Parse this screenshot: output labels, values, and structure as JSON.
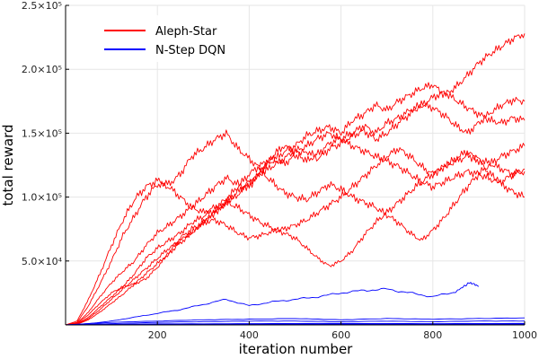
{
  "chart_data": {
    "type": "line",
    "xlabel": "iteration number",
    "ylabel": "total reward",
    "xlim": [
      0,
      1000
    ],
    "ylim": [
      0,
      250000
    ],
    "grid": true,
    "legend_position": "top-left",
    "x_ticks": [
      {
        "value": 200,
        "label": "200"
      },
      {
        "value": 400,
        "label": "400"
      },
      {
        "value": 600,
        "label": "600"
      },
      {
        "value": 800,
        "label": "800"
      },
      {
        "value": 1000,
        "label": "1000"
      }
    ],
    "y_ticks": [
      {
        "value": 50000,
        "label": "5.0×10⁴"
      },
      {
        "value": 100000,
        "label": "1.0×10⁵"
      },
      {
        "value": 150000,
        "label": "1.5×10⁵"
      },
      {
        "value": 200000,
        "label": "2.0×10⁵"
      },
      {
        "value": 250000,
        "label": "2.5×10⁵"
      }
    ],
    "legend": [
      {
        "label": "Aleph-Star",
        "color": "#ff0000"
      },
      {
        "label": "N-Step DQN",
        "color": "#0000ff"
      }
    ],
    "series": [
      {
        "group": "Aleph-Star",
        "color": "#ff0000",
        "x": [
          0,
          25,
          50,
          75,
          100,
          125,
          150,
          175,
          200,
          225,
          250,
          275,
          300,
          325,
          350,
          375,
          400,
          425,
          450,
          475,
          500,
          525,
          550,
          575,
          600,
          625,
          650,
          675,
          700,
          725,
          750,
          775,
          800,
          825,
          850,
          875,
          900,
          925,
          950,
          975,
          1000
        ],
        "y": [
          0,
          3000,
          20000,
          40000,
          62000,
          82000,
          98000,
          108000,
          113000,
          110000,
          118000,
          132000,
          138000,
          145000,
          150000,
          138000,
          130000,
          122000,
          128000,
          135000,
          140000,
          148000,
          152000,
          155000,
          150000,
          160000,
          165000,
          172000,
          168000,
          175000,
          180000,
          185000,
          188000,
          180000,
          186000,
          195000,
          205000,
          212000,
          218000,
          224000,
          228000
        ]
      },
      {
        "group": "Aleph-Star",
        "color": "#ff0000",
        "x": [
          0,
          25,
          50,
          75,
          100,
          125,
          150,
          175,
          200,
          225,
          250,
          275,
          300,
          325,
          350,
          375,
          400,
          425,
          450,
          475,
          500,
          525,
          550,
          575,
          600,
          625,
          650,
          675,
          700,
          725,
          750,
          775,
          800,
          825,
          850,
          875,
          900,
          925,
          950,
          975,
          1000
        ],
        "y": [
          0,
          2000,
          15000,
          32000,
          50000,
          70000,
          85000,
          100000,
          110000,
          108000,
          100000,
          92000,
          88000,
          92000,
          98000,
          108000,
          118000,
          125000,
          130000,
          126000,
          132000,
          136000,
          130000,
          138000,
          142000,
          148000,
          152000,
          145000,
          150000,
          158000,
          165000,
          172000,
          178000,
          182000,
          176000,
          170000,
          165000,
          160000,
          158000,
          162000,
          160000
        ]
      },
      {
        "group": "Aleph-Star",
        "color": "#ff0000",
        "x": [
          0,
          25,
          50,
          75,
          100,
          125,
          150,
          175,
          200,
          225,
          250,
          275,
          300,
          325,
          350,
          375,
          400,
          425,
          450,
          475,
          500,
          525,
          550,
          575,
          600,
          625,
          650,
          675,
          700,
          725,
          750,
          775,
          800,
          825,
          850,
          875,
          900,
          925,
          950,
          975,
          1000
        ],
        "y": [
          0,
          1500,
          10000,
          22000,
          33000,
          42000,
          50000,
          62000,
          72000,
          78000,
          85000,
          92000,
          100000,
          108000,
          115000,
          110000,
          108000,
          120000,
          132000,
          140000,
          136000,
          128000,
          134000,
          142000,
          146000,
          150000,
          156000,
          150000,
          158000,
          162000,
          168000,
          172000,
          170000,
          164000,
          156000,
          150000,
          158000,
          166000,
          172000,
          176000,
          175000
        ]
      },
      {
        "group": "Aleph-Star",
        "color": "#ff0000",
        "x": [
          0,
          25,
          50,
          75,
          100,
          125,
          150,
          175,
          200,
          225,
          250,
          275,
          300,
          325,
          350,
          375,
          400,
          425,
          450,
          475,
          500,
          525,
          550,
          575,
          600,
          625,
          650,
          675,
          700,
          725,
          750,
          775,
          800,
          825,
          850,
          875,
          900,
          925,
          950,
          975,
          1000
        ],
        "y": [
          0,
          1000,
          8000,
          17000,
          25000,
          30000,
          32000,
          36000,
          45000,
          56000,
          68000,
          75000,
          80000,
          82000,
          78000,
          72000,
          68000,
          70000,
          73000,
          75000,
          78000,
          82000,
          88000,
          94000,
          100000,
          108000,
          116000,
          124000,
          132000,
          138000,
          132000,
          124000,
          118000,
          124000,
          130000,
          136000,
          128000,
          118000,
          110000,
          104000,
          100000
        ]
      },
      {
        "group": "Aleph-Star",
        "color": "#ff0000",
        "x": [
          0,
          25,
          50,
          75,
          100,
          125,
          150,
          175,
          200,
          225,
          250,
          275,
          300,
          325,
          350,
          375,
          400,
          425,
          450,
          475,
          500,
          525,
          550,
          575,
          600,
          625,
          650,
          675,
          700,
          725,
          750,
          775,
          800,
          825,
          850,
          875,
          900,
          925,
          950,
          975,
          1000
        ],
        "y": [
          0,
          800,
          6000,
          14000,
          22000,
          30000,
          40000,
          52000,
          60000,
          66000,
          72000,
          80000,
          85000,
          90000,
          96000,
          92000,
          86000,
          80000,
          76000,
          72000,
          68000,
          60000,
          52000,
          46000,
          50000,
          58000,
          70000,
          80000,
          88000,
          96000,
          104000,
          112000,
          118000,
          124000,
          128000,
          132000,
          130000,
          126000,
          122000,
          118000,
          120000
        ]
      },
      {
        "group": "Aleph-Star",
        "color": "#ff0000",
        "x": [
          0,
          25,
          50,
          75,
          100,
          125,
          150,
          175,
          200,
          225,
          250,
          275,
          300,
          325,
          350,
          375,
          400,
          425,
          450,
          475,
          500,
          525,
          550,
          575,
          600,
          625,
          650,
          675,
          700,
          725,
          750,
          775,
          800,
          825,
          850,
          875,
          900,
          925,
          950,
          975,
          1000
        ],
        "y": [
          0,
          600,
          5000,
          12000,
          20000,
          28000,
          36000,
          44000,
          52000,
          60000,
          66000,
          72000,
          80000,
          88000,
          95000,
          102000,
          110000,
          120000,
          112000,
          104000,
          100000,
          98000,
          104000,
          110000,
          106000,
          100000,
          96000,
          92000,
          86000,
          80000,
          72000,
          66000,
          74000,
          84000,
          96000,
          108000,
          118000,
          126000,
          132000,
          136000,
          140000
        ]
      },
      {
        "group": "Aleph-Star",
        "color": "#ff0000",
        "x": [
          0,
          25,
          50,
          75,
          100,
          125,
          150,
          175,
          200,
          225,
          250,
          275,
          300,
          325,
          350,
          375,
          400,
          425,
          450,
          475,
          500,
          525,
          550,
          575,
          600,
          625,
          650,
          675,
          700,
          725,
          750,
          775,
          800,
          825,
          850,
          875,
          900,
          925,
          950,
          975,
          1000
        ],
        "y": [
          0,
          500,
          4000,
          10000,
          17000,
          24000,
          32000,
          40000,
          48000,
          56000,
          64000,
          72000,
          80000,
          88000,
          96000,
          104000,
          112000,
          118000,
          124000,
          130000,
          136000,
          140000,
          146000,
          150000,
          145000,
          140000,
          136000,
          132000,
          128000,
          124000,
          118000,
          112000,
          108000,
          112000,
          116000,
          120000,
          118000,
          114000,
          112000,
          118000,
          122000
        ]
      },
      {
        "group": "N-Step DQN",
        "color": "#0000ff",
        "x": [
          0,
          50,
          100,
          150,
          200,
          250,
          300,
          350,
          400,
          450,
          500,
          550,
          600,
          650,
          700,
          750,
          800,
          850,
          880,
          900
        ],
        "y": [
          0,
          1000,
          3000,
          6000,
          9000,
          12000,
          16000,
          20000,
          15000,
          18000,
          20000,
          22000,
          25000,
          27000,
          28000,
          25000,
          22000,
          26000,
          33000,
          30000
        ]
      },
      {
        "group": "N-Step DQN",
        "color": "#0000ff",
        "x": [
          0,
          100,
          200,
          300,
          400,
          500,
          600,
          700,
          800,
          900,
          1000
        ],
        "y": [
          0,
          2000,
          3000,
          4000,
          4500,
          5000,
          4000,
          5000,
          4500,
          5000,
          5500
        ]
      },
      {
        "group": "N-Step DQN",
        "color": "#0000ff",
        "x": [
          0,
          100,
          200,
          300,
          400,
          500,
          600,
          700,
          800,
          900,
          1000
        ],
        "y": [
          0,
          1000,
          2000,
          2500,
          3000,
          3000,
          2500,
          3000,
          2500,
          3000,
          3000
        ]
      },
      {
        "group": "N-Step DQN",
        "color": "#0000ff",
        "x": [
          0,
          200,
          400,
          600,
          800,
          1000
        ],
        "y": [
          0,
          800,
          1000,
          1200,
          1000,
          1200
        ]
      },
      {
        "group": "N-Step DQN",
        "color": "#0000ff",
        "x": [
          0,
          200,
          400,
          600,
          800,
          1000
        ],
        "y": [
          0,
          400,
          600,
          700,
          600,
          700
        ]
      },
      {
        "group": "N-Step DQN",
        "color": "#0000ff",
        "x": [
          0,
          250,
          500,
          750,
          1000
        ],
        "y": [
          0,
          200,
          300,
          300,
          300
        ]
      }
    ]
  }
}
